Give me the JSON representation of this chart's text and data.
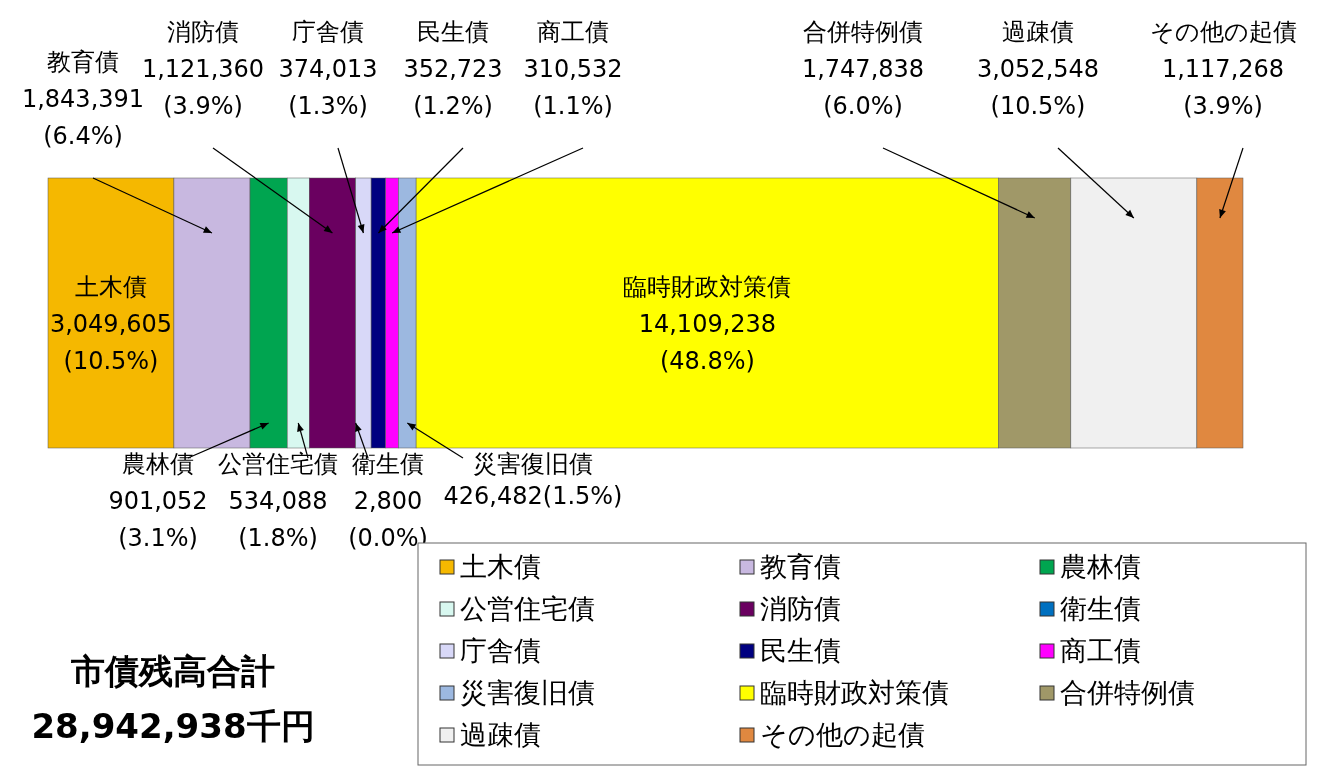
{
  "chart_data": {
    "type": "bar",
    "orientation": "horizontal",
    "stacked": true,
    "title": "市債残高合計",
    "subtitle": "28,942,938千円",
    "categories": [
      null
    ],
    "legend": "bottom right",
    "series": [
      {
        "name": "土木債",
        "color": "#f5b800",
        "values": [
          3049605
        ],
        "value_labels": [
          "3,049,605 (10.5%)"
        ]
      },
      {
        "name": "教育債",
        "color": "#c8b8e0",
        "values": [
          1843391
        ],
        "value_labels": [
          "1,843,391 (6.4%)"
        ]
      },
      {
        "name": "農林債",
        "color": "#00a550",
        "values": [
          901052
        ],
        "value_labels": [
          "901,052 (3.1%)"
        ]
      },
      {
        "name": "公営住宅債",
        "color": "#d8f8f0",
        "values": [
          534088
        ],
        "value_labels": [
          "534,088 (1.8%)"
        ]
      },
      {
        "name": "消防債",
        "color": "#6a0060",
        "values": [
          1121360
        ],
        "value_labels": [
          "1,121,360 (3.9%)"
        ]
      },
      {
        "name": "衛生債",
        "color": "#0070c0",
        "values": [
          2800
        ],
        "value_labels": [
          "2,800 (0.0%)"
        ]
      },
      {
        "name": "庁舎債",
        "color": "#d8d8f8",
        "values": [
          374013
        ],
        "value_labels": [
          "374,013 (1.3%)"
        ]
      },
      {
        "name": "民生債",
        "color": "#000080",
        "values": [
          352723
        ],
        "value_labels": [
          "352,723 (1.2%)"
        ]
      },
      {
        "name": "商工債",
        "color": "#ff00ff",
        "values": [
          310532
        ],
        "value_labels": [
          "310,532 (1.1%)"
        ]
      },
      {
        "name": "災害復旧債",
        "color": "#9cb8e0",
        "values": [
          426482
        ],
        "value_labels": [
          "426,482(1.5%)"
        ]
      },
      {
        "name": "臨時財政対策債",
        "color": "#ffff00",
        "values": [
          14109238
        ],
        "value_labels": [
          "14,109,238 (48.8%)"
        ]
      },
      {
        "name": "合併特例債",
        "color": "#a09868",
        "values": [
          1747838
        ],
        "value_labels": [
          "1,747,838 (6.0%)"
        ]
      },
      {
        "name": "過疎債",
        "color": "#f0f0f0",
        "values": [
          3052548
        ],
        "value_labels": [
          "3,052,548 (10.5%)"
        ]
      },
      {
        "name": "その他の起債",
        "color": "#e08840",
        "values": [
          1117268
        ],
        "value_labels": [
          "1,117,268 (3.9%)"
        ]
      }
    ]
  }
}
